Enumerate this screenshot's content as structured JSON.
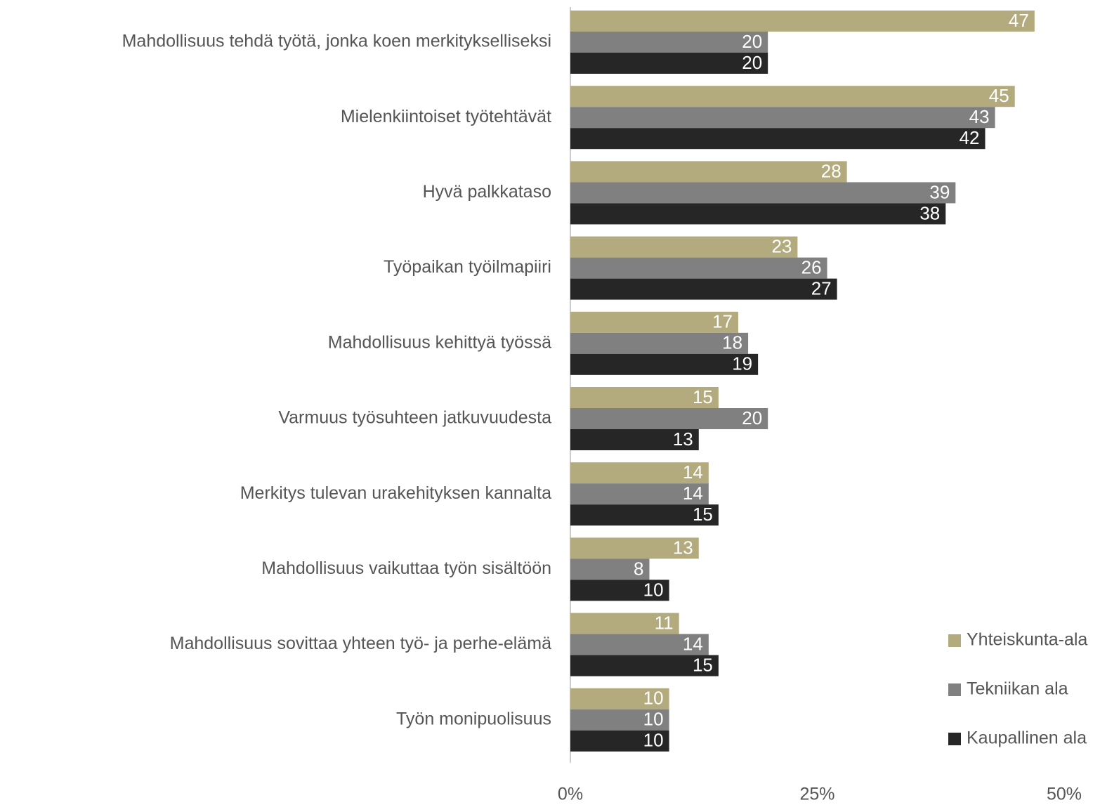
{
  "chart_data": {
    "type": "bar",
    "orientation": "horizontal",
    "categories": [
      "Mahdollisuus tehdä työtä, jonka koen merkitykselliseksi",
      "Mielenkiintoiset työtehtävät",
      "Hyvä palkkataso",
      "Työpaikan työilmapiiri",
      "Mahdollisuus kehittyä työssä",
      "Varmuus työsuhteen jatkuvuudesta",
      "Merkitys tulevan urakehityksen kannalta",
      "Mahdollisuus vaikuttaa työn sisältöön",
      "Mahdollisuus sovittaa yhteen työ- ja perhe-elämä",
      "Työn monipuolisuus"
    ],
    "series": [
      {
        "name": "Yhteiskunta-ala",
        "color": "#b3ab7d",
        "values": [
          47,
          45,
          28,
          23,
          17,
          15,
          14,
          13,
          11,
          10
        ]
      },
      {
        "name": "Tekniikan ala",
        "color": "#808080",
        "values": [
          20,
          43,
          39,
          26,
          18,
          20,
          14,
          8,
          14,
          10
        ]
      },
      {
        "name": "Kaupallinen ala",
        "color": "#262626",
        "values": [
          20,
          42,
          38,
          27,
          19,
          13,
          15,
          10,
          15,
          10
        ]
      }
    ],
    "xlim": [
      0,
      50
    ],
    "xticks": [
      {
        "value": 0,
        "label": "0%"
      },
      {
        "value": 25,
        "label": "25%"
      },
      {
        "value": 50,
        "label": "50%"
      }
    ],
    "legend": "right"
  }
}
